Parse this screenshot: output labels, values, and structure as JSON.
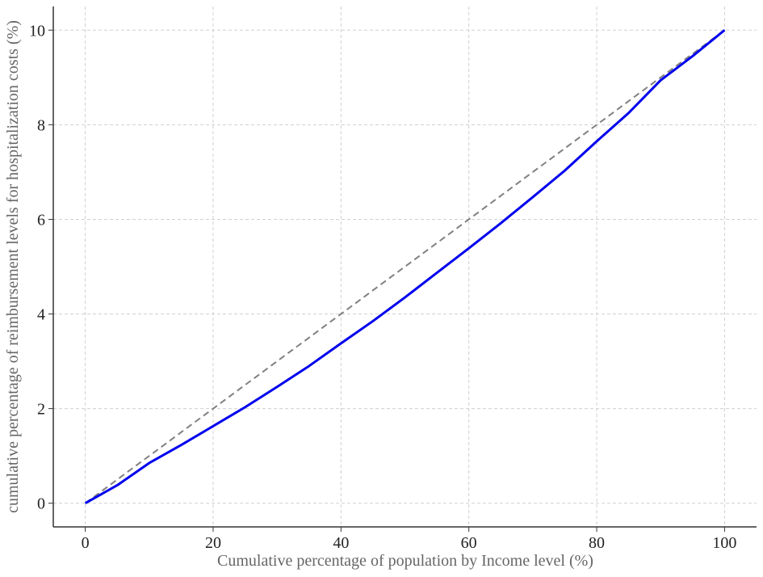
{
  "chart_data": {
    "type": "line",
    "x_label": "Cumulative percentage of population by Income level (%)",
    "y_label": "cumulative percentage of reimbursement levels for hospitalization costs (%)",
    "series": [
      {
        "color": "#0000ee",
        "style": "solid",
        "x": [
          0,
          5,
          10,
          15,
          20,
          25,
          30,
          35,
          40,
          45,
          50,
          55,
          60,
          65,
          70,
          75,
          80,
          85,
          90,
          95,
          100
        ],
        "values": [
          0,
          0.38,
          0.85,
          1.23,
          1.63,
          2.03,
          2.46,
          2.9,
          3.38,
          3.85,
          4.35,
          4.87,
          5.39,
          5.92,
          6.47,
          7.03,
          7.65,
          8.25,
          8.94,
          9.45,
          10
        ]
      },
      {
        "color": "#808080",
        "style": "dashed",
        "x": [
          0,
          100
        ],
        "values": [
          0,
          10
        ]
      }
    ],
    "xlim": [
      -5,
      105
    ],
    "ylim": [
      -0.5,
      10.5
    ],
    "xticks": [
      0,
      20,
      40,
      60,
      80,
      100
    ],
    "yticks": [
      0,
      2,
      4,
      6,
      8,
      10
    ],
    "grid": true
  }
}
